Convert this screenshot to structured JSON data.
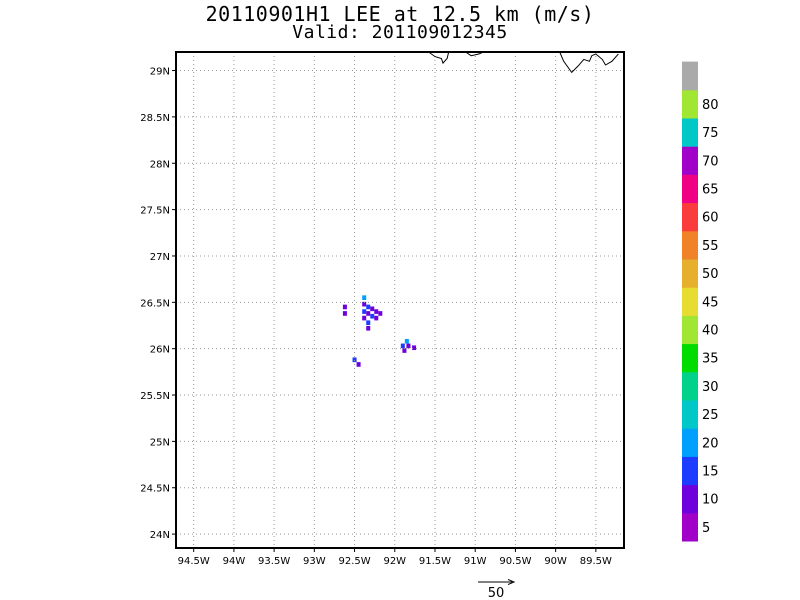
{
  "title": {
    "line1": "20110901H1 LEE at 12.5 km (m/s)",
    "line2": "Valid: 201109012345"
  },
  "chart_data": {
    "type": "heatmap",
    "title": "20110901H1 LEE at 12.5 km (m/s)",
    "subtitle": "Valid: 201109012345",
    "xlabel": "",
    "ylabel": "",
    "xlim": [
      -94.72,
      -89.15
    ],
    "ylim": [
      23.85,
      29.2
    ],
    "grid": true,
    "x_ticks": [
      -94.5,
      -94,
      -93.5,
      -93,
      -92.5,
      -92,
      -91.5,
      -91,
      -90.5,
      -90,
      -89.5
    ],
    "x_tick_labels": [
      "94.5W",
      "94W",
      "93.5W",
      "93W",
      "92.5W",
      "92W",
      "91.5W",
      "91W",
      "90.5W",
      "90W",
      "89.5W"
    ],
    "y_ticks": [
      24,
      24.5,
      25,
      25.5,
      26,
      26.5,
      27,
      27.5,
      28,
      28.5,
      29
    ],
    "y_tick_labels": [
      "24N",
      "24.5N",
      "25N",
      "25.5N",
      "26N",
      "26.5N",
      "27N",
      "27.5N",
      "28N",
      "28.5N",
      "29N"
    ],
    "colorbar": {
      "labels": [
        "5",
        "10",
        "15",
        "20",
        "25",
        "30",
        "35",
        "40",
        "45",
        "50",
        "55",
        "60",
        "65",
        "70",
        "75",
        "80"
      ],
      "colors": [
        "#a000c8",
        "#6e00dc",
        "#1e3cff",
        "#00a0ff",
        "#00c8c8",
        "#00d28c",
        "#00dc00",
        "#a0e632",
        "#e6dc32",
        "#e6af2d",
        "#f08228",
        "#fa3c3c",
        "#f00082",
        "#a000c8",
        "#00c8c8",
        "#a0e632",
        "#aaaaaa"
      ]
    },
    "vector_reference": {
      "label": "50"
    },
    "cells": [
      {
        "lon": -92.62,
        "lat": 26.38,
        "value": 5
      },
      {
        "lon": -92.62,
        "lat": 26.45,
        "value": 5
      },
      {
        "lon": -92.38,
        "lat": 26.55,
        "value": 15
      },
      {
        "lon": -92.38,
        "lat": 26.48,
        "value": 5
      },
      {
        "lon": -92.33,
        "lat": 26.45,
        "value": 10
      },
      {
        "lon": -92.28,
        "lat": 26.43,
        "value": 5
      },
      {
        "lon": -92.23,
        "lat": 26.4,
        "value": 5
      },
      {
        "lon": -92.18,
        "lat": 26.38,
        "value": 5
      },
      {
        "lon": -92.38,
        "lat": 26.4,
        "value": 10
      },
      {
        "lon": -92.33,
        "lat": 26.38,
        "value": 5
      },
      {
        "lon": -92.28,
        "lat": 26.35,
        "value": 10
      },
      {
        "lon": -92.23,
        "lat": 26.33,
        "value": 5
      },
      {
        "lon": -92.38,
        "lat": 26.33,
        "value": 5
      },
      {
        "lon": -92.33,
        "lat": 26.28,
        "value": 10
      },
      {
        "lon": -92.33,
        "lat": 26.22,
        "value": 5
      },
      {
        "lon": -91.85,
        "lat": 26.08,
        "value": 15
      },
      {
        "lon": -91.9,
        "lat": 26.03,
        "value": 10
      },
      {
        "lon": -91.83,
        "lat": 26.03,
        "value": 5
      },
      {
        "lon": -91.76,
        "lat": 26.01,
        "value": 5
      },
      {
        "lon": -91.88,
        "lat": 25.98,
        "value": 5
      },
      {
        "lon": -92.5,
        "lat": 25.88,
        "value": 10
      },
      {
        "lon": -92.45,
        "lat": 25.83,
        "value": 5
      }
    ],
    "coastline": [
      [
        [
          -91.58,
          29.2
        ],
        [
          -91.5,
          29.15
        ],
        [
          -91.42,
          29.13
        ],
        [
          -91.4,
          29.08
        ],
        [
          -91.35,
          29.13
        ],
        [
          -91.33,
          29.2
        ]
      ],
      [
        [
          -91.12,
          29.2
        ],
        [
          -91.05,
          29.16
        ],
        [
          -90.95,
          29.18
        ],
        [
          -90.9,
          29.2
        ]
      ],
      [
        [
          -89.95,
          29.2
        ],
        [
          -89.9,
          29.1
        ],
        [
          -89.8,
          28.98
        ],
        [
          -89.72,
          29.05
        ],
        [
          -89.65,
          29.12
        ],
        [
          -89.58,
          29.1
        ],
        [
          -89.55,
          29.16
        ],
        [
          -89.5,
          29.18
        ],
        [
          -89.42,
          29.12
        ],
        [
          -89.38,
          29.06
        ],
        [
          -89.3,
          29.1
        ],
        [
          -89.22,
          29.18
        ]
      ]
    ]
  }
}
